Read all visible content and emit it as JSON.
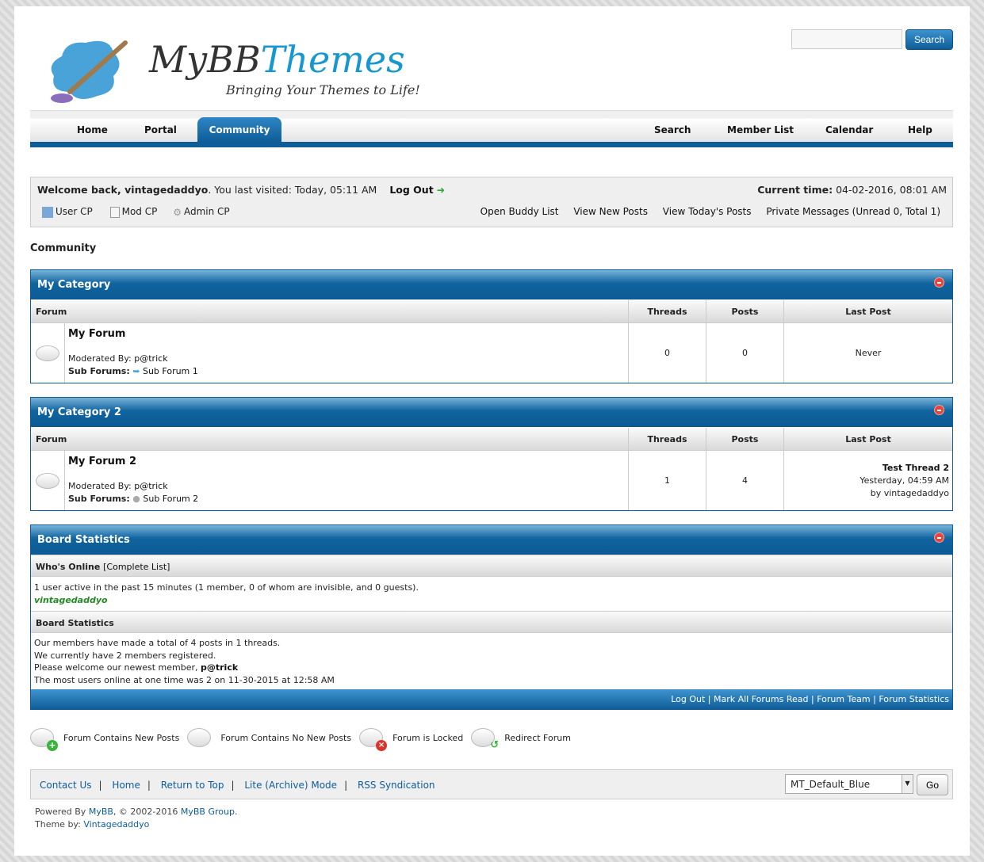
{
  "header": {
    "logo_main": "MyBB",
    "logo_accent": "Themes",
    "tagline": "Bringing Your Themes to Life!",
    "search_placeholder": "",
    "search_button": "Search"
  },
  "nav": {
    "left": [
      "Home",
      "Portal",
      "Community"
    ],
    "active": "Community",
    "right": [
      "Search",
      "Member List",
      "Calendar",
      "Help"
    ]
  },
  "welcome": {
    "greeting": "Welcome back, vintagedaddyo",
    "last_visit": ". You last visited: Today, 05:11 AM",
    "logout": "Log Out",
    "current_time_label": "Current time:",
    "current_time": "04-02-2016, 08:01 AM",
    "links_left": [
      "User CP",
      "Mod CP",
      "Admin CP"
    ],
    "links_right": [
      "Open Buddy List",
      "View New Posts",
      "View Today's Posts",
      "Private Messages (Unread 0, Total 1)"
    ]
  },
  "page_title": "Community",
  "columns": {
    "forum": "Forum",
    "threads": "Threads",
    "posts": "Posts",
    "last_post": "Last Post"
  },
  "categories": [
    {
      "name": "My Category",
      "forums": [
        {
          "name": "My Forum",
          "moderated_label": "Moderated By:",
          "moderator": "p@trick",
          "sub_label": "Sub Forums:",
          "sub_forum": "Sub Forum 1",
          "threads": "0",
          "posts": "0",
          "last_post": "Never"
        }
      ]
    },
    {
      "name": "My Category 2",
      "forums": [
        {
          "name": "My Forum 2",
          "moderated_label": "Moderated By:",
          "moderator": "p@trick",
          "sub_label": "Sub Forums:",
          "sub_forum": "Sub Forum 2",
          "threads": "1",
          "posts": "4",
          "last_thread": "Test Thread 2",
          "last_time": "Yesterday, 04:59 AM",
          "last_by": "by vintagedaddyo"
        }
      ]
    }
  ],
  "stats": {
    "title": "Board Statistics",
    "online_title": "Who's Online",
    "complete_list": "[Complete List]",
    "online_text": "1 user active in the past 15 minutes (1 member, 0 of whom are invisible, and 0 guests).",
    "online_user": "vintagedaddyo",
    "stats_title": "Board Statistics",
    "line1": "Our members have made a total of 4 posts in 1 threads.",
    "line2": "We currently have 2 members registered.",
    "line3": "Please welcome our newest member, ",
    "newest": "p@trick",
    "line4": "The most users online at one time was 2 on 11-30-2015 at 12:58 AM",
    "footer_links": [
      "Log Out",
      "Mark All Forums Read",
      "Forum Team",
      "Forum Statistics"
    ]
  },
  "legend": [
    "Forum Contains New Posts",
    "Forum Contains No New Posts",
    "Forum is Locked",
    "Redirect Forum"
  ],
  "footer": {
    "links": [
      "Contact Us",
      "Home",
      "Return to Top",
      "Lite (Archive) Mode",
      "RSS Syndication"
    ],
    "theme_selected": "MT_Default_Blue",
    "go": "Go"
  },
  "powered": {
    "prefix": "Powered By ",
    "mybb": "MyBB",
    "mid": ", © 2002-2016 ",
    "group": "MyBB Group",
    "end": ".",
    "theme_label": "Theme by: ",
    "theme_author": "Vintagedaddyo"
  },
  "colors": {
    "accent": "#0f5d98",
    "online_user": "#228b22"
  }
}
